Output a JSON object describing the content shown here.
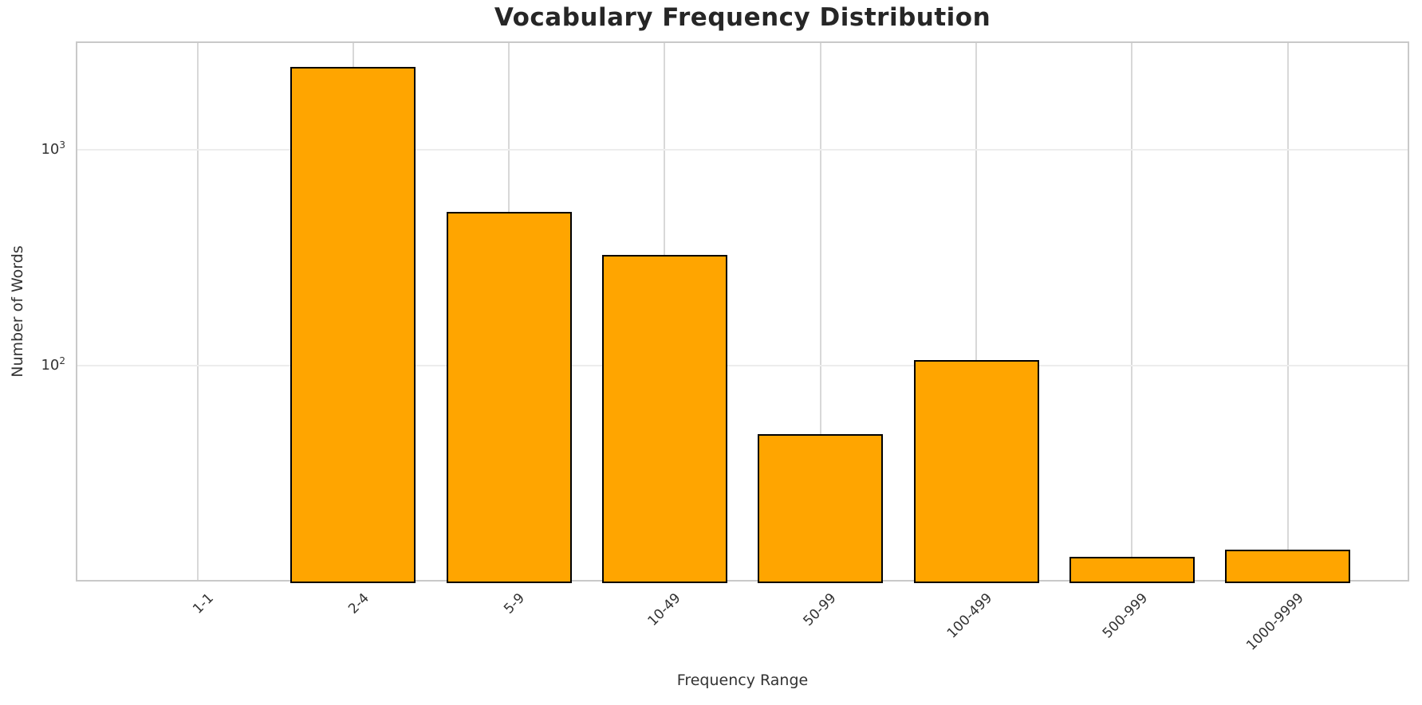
{
  "chart_data": {
    "type": "bar",
    "title": "Vocabulary Frequency Distribution",
    "xlabel": "Frequency Range",
    "ylabel": "Number of Words",
    "categories": [
      "1-1",
      "2-4",
      "5-9",
      "10-49",
      "50-99",
      "100-499",
      "500-999",
      "1000-9999"
    ],
    "values": [
      0,
      2400,
      516,
      325,
      48,
      106,
      13,
      14
    ],
    "yscale": "log",
    "ylim": [
      10,
      3162
    ],
    "yticks": [
      {
        "value": 1000,
        "base": "10",
        "exp": "3"
      },
      {
        "value": 100,
        "base": "10",
        "exp": "2"
      }
    ],
    "grid": "on",
    "legend": "none",
    "colors": {
      "bar_fill": "#FFA500",
      "bar_edge": "#000000",
      "grid_vertical": "#D8D8D8",
      "grid_horizontal": "#EDEDED",
      "spine": "#C9C9C9",
      "title_text": "#262626",
      "tick_text": "#333333"
    }
  }
}
